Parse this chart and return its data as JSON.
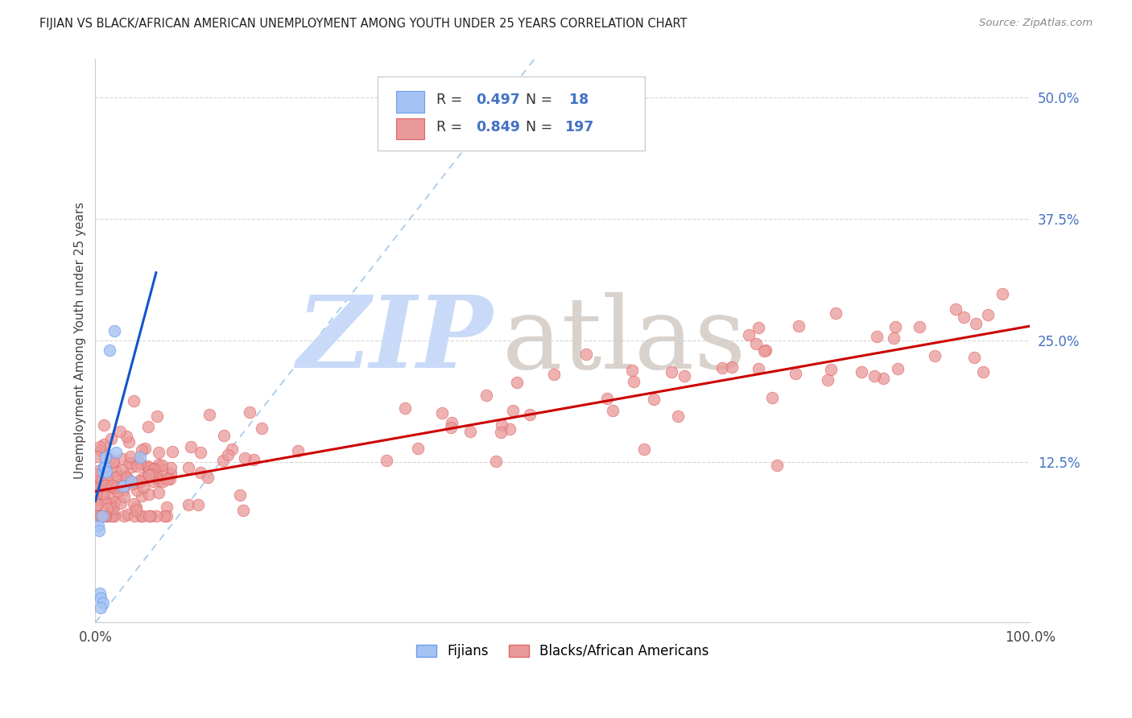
{
  "title": "FIJIAN VS BLACK/AFRICAN AMERICAN UNEMPLOYMENT AMONG YOUTH UNDER 25 YEARS CORRELATION CHART",
  "source": "Source: ZipAtlas.com",
  "ylabel": "Unemployment Among Youth under 25 years",
  "xlim": [
    0.0,
    1.0
  ],
  "ylim": [
    -0.04,
    0.54
  ],
  "xticks": [
    0.0,
    0.1,
    0.2,
    0.3,
    0.4,
    0.5,
    0.6,
    0.7,
    0.8,
    0.9,
    1.0
  ],
  "xticklabels": [
    "0.0%",
    "",
    "",
    "",
    "",
    "",
    "",
    "",
    "",
    "",
    "100.0%"
  ],
  "ytick_positions": [
    0.125,
    0.25,
    0.375,
    0.5
  ],
  "yticklabels": [
    "12.5%",
    "25.0%",
    "37.5%",
    "50.0%"
  ],
  "fijian_R": 0.497,
  "fijian_N": 18,
  "black_R": 0.849,
  "black_N": 197,
  "fijian_color": "#a4c2f4",
  "fijian_edge": "#6d9eeb",
  "black_color": "#ea9999",
  "black_edge": "#e06666",
  "fijian_trend_color": "#1155cc",
  "black_trend_color": "#cc0000",
  "diagonal_color": "#9fc5e8",
  "watermark_zip_color": "#c9daf8",
  "watermark_atlas_color": "#d9d2cc",
  "background": "#ffffff",
  "fijian_x": [
    0.003,
    0.004,
    0.005,
    0.006,
    0.007,
    0.008,
    0.009,
    0.01,
    0.011,
    0.012,
    0.015,
    0.02,
    0.022,
    0.03,
    0.038,
    0.048,
    0.008,
    0.006
  ],
  "fijian_y": [
    0.06,
    0.055,
    -0.01,
    -0.015,
    0.07,
    0.115,
    0.12,
    0.12,
    0.13,
    0.115,
    0.24,
    0.26,
    0.135,
    0.1,
    0.105,
    0.13,
    -0.02,
    -0.025
  ],
  "legend_fijians": "Fijians",
  "legend_blacks": "Blacks/African Americans"
}
